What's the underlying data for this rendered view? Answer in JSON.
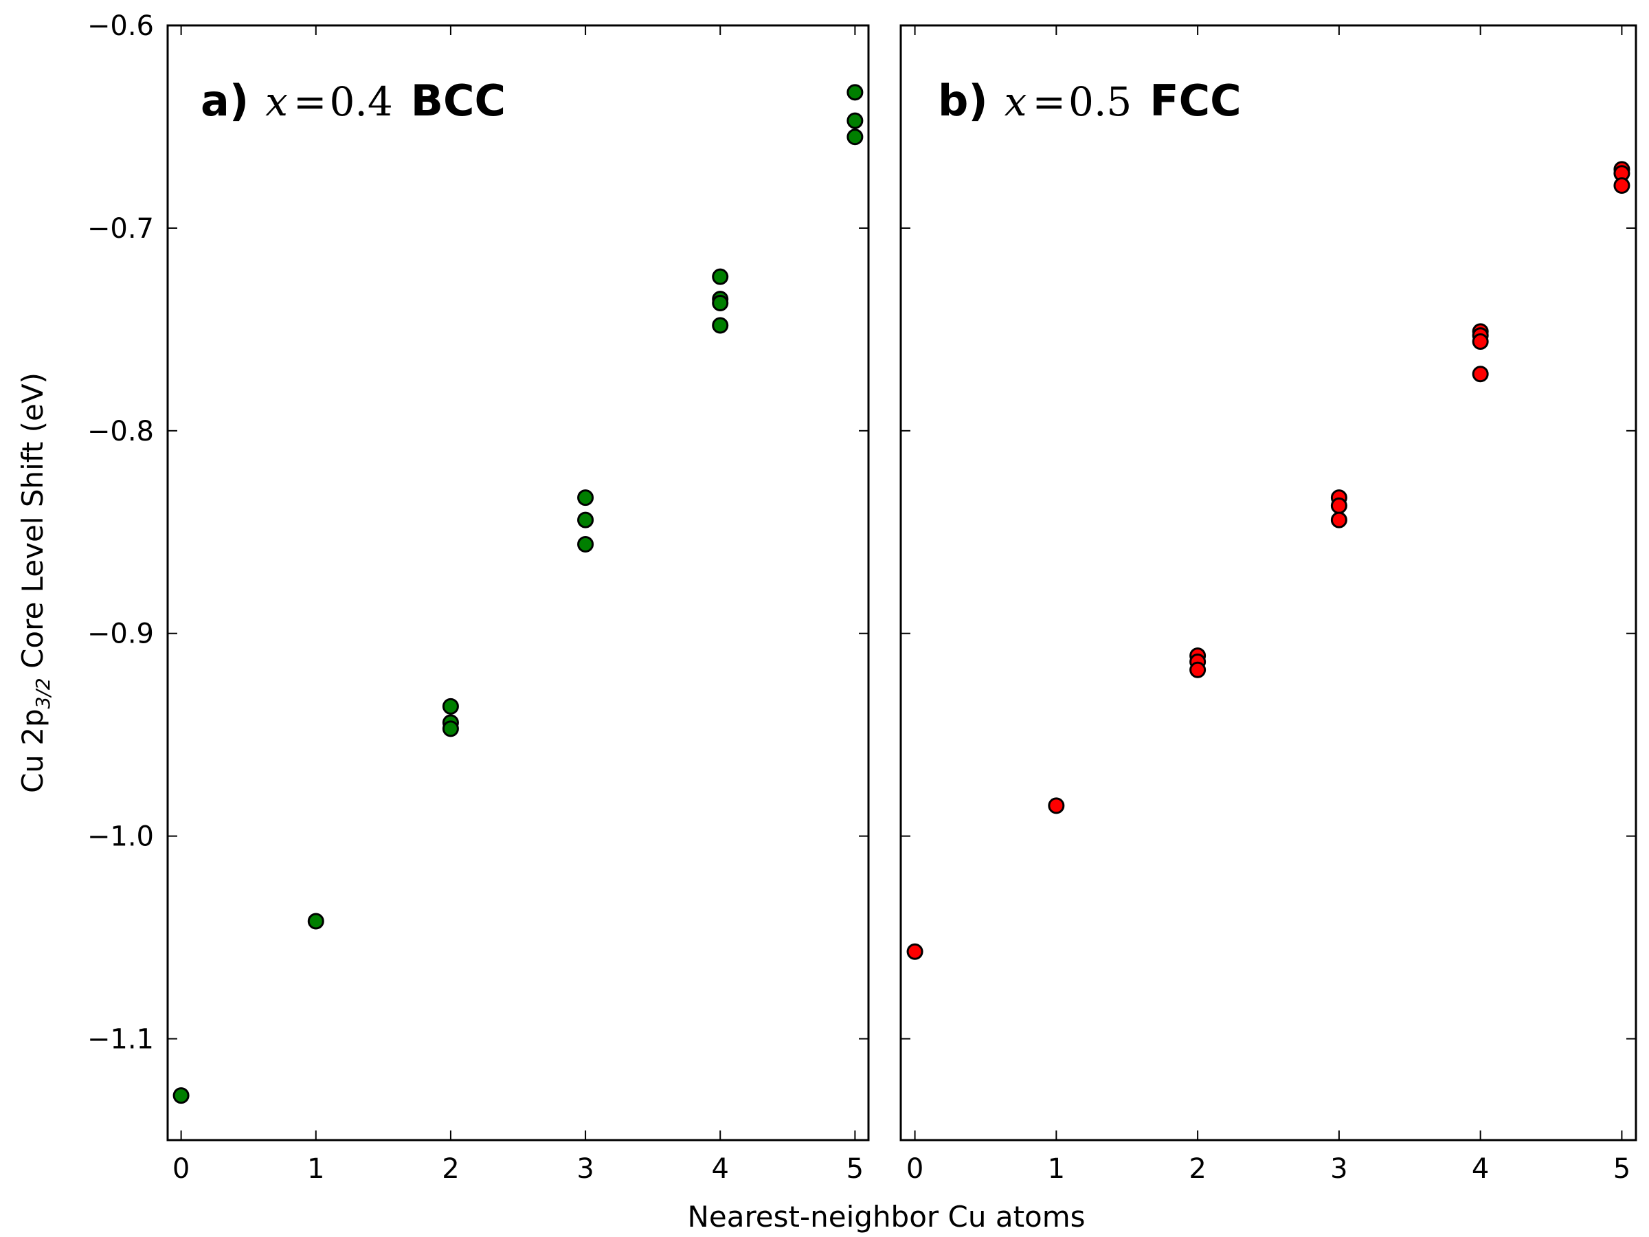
{
  "figure": {
    "xlabel": "Nearest-neighbor Cu atoms",
    "ylabel_parts": {
      "main": "Cu 2p",
      "subscript": "3/2",
      "rest": " Core Level Shift (eV)"
    }
  },
  "chart_data": [
    {
      "type": "scatter",
      "panel_label": {
        "letter": "a)",
        "var": "x",
        "eq": "=",
        "num": "0.4",
        "phase": "BCC"
      },
      "marker_color": "#007f00",
      "xlim": [
        -0.1,
        5.1
      ],
      "ylim": [
        -1.15,
        -0.6
      ],
      "x_ticks": [
        "0",
        "1",
        "2",
        "3",
        "4",
        "5"
      ],
      "y_ticks": [
        "−0.6",
        "−0.7",
        "−0.8",
        "−0.9",
        "−1.0",
        "−1.1"
      ],
      "points": [
        {
          "x": 0,
          "y": -1.128
        },
        {
          "x": 1,
          "y": -1.042
        },
        {
          "x": 2,
          "y": -0.936
        },
        {
          "x": 2,
          "y": -0.944
        },
        {
          "x": 2,
          "y": -0.947
        },
        {
          "x": 3,
          "y": -0.833
        },
        {
          "x": 3,
          "y": -0.844
        },
        {
          "x": 3,
          "y": -0.856
        },
        {
          "x": 4,
          "y": -0.724
        },
        {
          "x": 4,
          "y": -0.735
        },
        {
          "x": 4,
          "y": -0.737
        },
        {
          "x": 4,
          "y": -0.748
        },
        {
          "x": 5,
          "y": -0.633
        },
        {
          "x": 5,
          "y": -0.647
        },
        {
          "x": 5,
          "y": -0.655
        }
      ]
    },
    {
      "type": "scatter",
      "panel_label": {
        "letter": "b)",
        "var": "x",
        "eq": "=",
        "num": "0.5",
        "phase": "FCC"
      },
      "marker_color": "#ff0000",
      "xlim": [
        -0.1,
        5.1
      ],
      "ylim": [
        -1.15,
        -0.6
      ],
      "x_ticks": [
        "0",
        "1",
        "2",
        "3",
        "4",
        "5"
      ],
      "y_ticks": [],
      "points": [
        {
          "x": 0,
          "y": -1.057
        },
        {
          "x": 1,
          "y": -0.985
        },
        {
          "x": 2,
          "y": -0.911
        },
        {
          "x": 2,
          "y": -0.914
        },
        {
          "x": 2,
          "y": -0.918
        },
        {
          "x": 3,
          "y": -0.833
        },
        {
          "x": 3,
          "y": -0.837
        },
        {
          "x": 3,
          "y": -0.844
        },
        {
          "x": 4,
          "y": -0.751
        },
        {
          "x": 4,
          "y": -0.753
        },
        {
          "x": 4,
          "y": -0.756
        },
        {
          "x": 4,
          "y": -0.772
        },
        {
          "x": 5,
          "y": -0.671
        },
        {
          "x": 5,
          "y": -0.673
        },
        {
          "x": 5,
          "y": -0.679
        }
      ]
    }
  ]
}
